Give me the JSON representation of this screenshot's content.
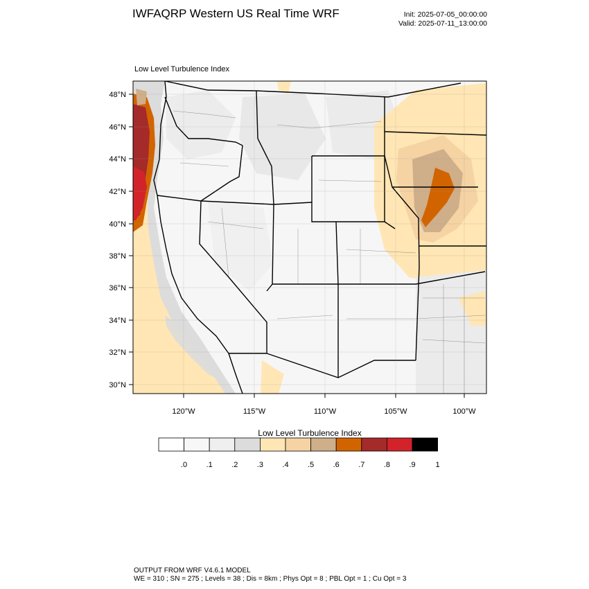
{
  "header": {
    "title": "IWFAQRP Western US Real Time WRF",
    "init": "Init: 2025-07-05_00:00:00",
    "valid": "Valid: 2025-07-11_13:00:00"
  },
  "map": {
    "subtitle": "Low Level Turbulence Index",
    "lat_labels": [
      "48°N",
      "46°N",
      "44°N",
      "42°N",
      "40°N",
      "38°N",
      "36°N",
      "34°N",
      "32°N",
      "30°N"
    ],
    "lon_labels": [
      "120°W",
      "115°W",
      "110°W",
      "105°W",
      "100°W"
    ]
  },
  "colorbar": {
    "title": "Low Level Turbulence Index",
    "colors": [
      "#ffffff",
      "#f7f7f7",
      "#efefef",
      "#dcdcdc",
      "#ffe6b4",
      "#f5d3a3",
      "#cfae8a",
      "#d26400",
      "#a52a2a",
      "#d2232a",
      "#000000"
    ],
    "ticks": [
      ".0",
      ".1",
      ".2",
      ".3",
      ".4",
      ".5",
      ".6",
      ".7",
      ".8",
      ".9",
      "1"
    ]
  },
  "footer": {
    "line1": "OUTPUT FROM WRF V4.6.1 MODEL",
    "line2": "WE = 310 ; SN = 275 ; Levels = 38 ; Dis = 8km ; Phys Opt = 8 ; PBL Opt = 1 ; Cu Opt = 3"
  }
}
